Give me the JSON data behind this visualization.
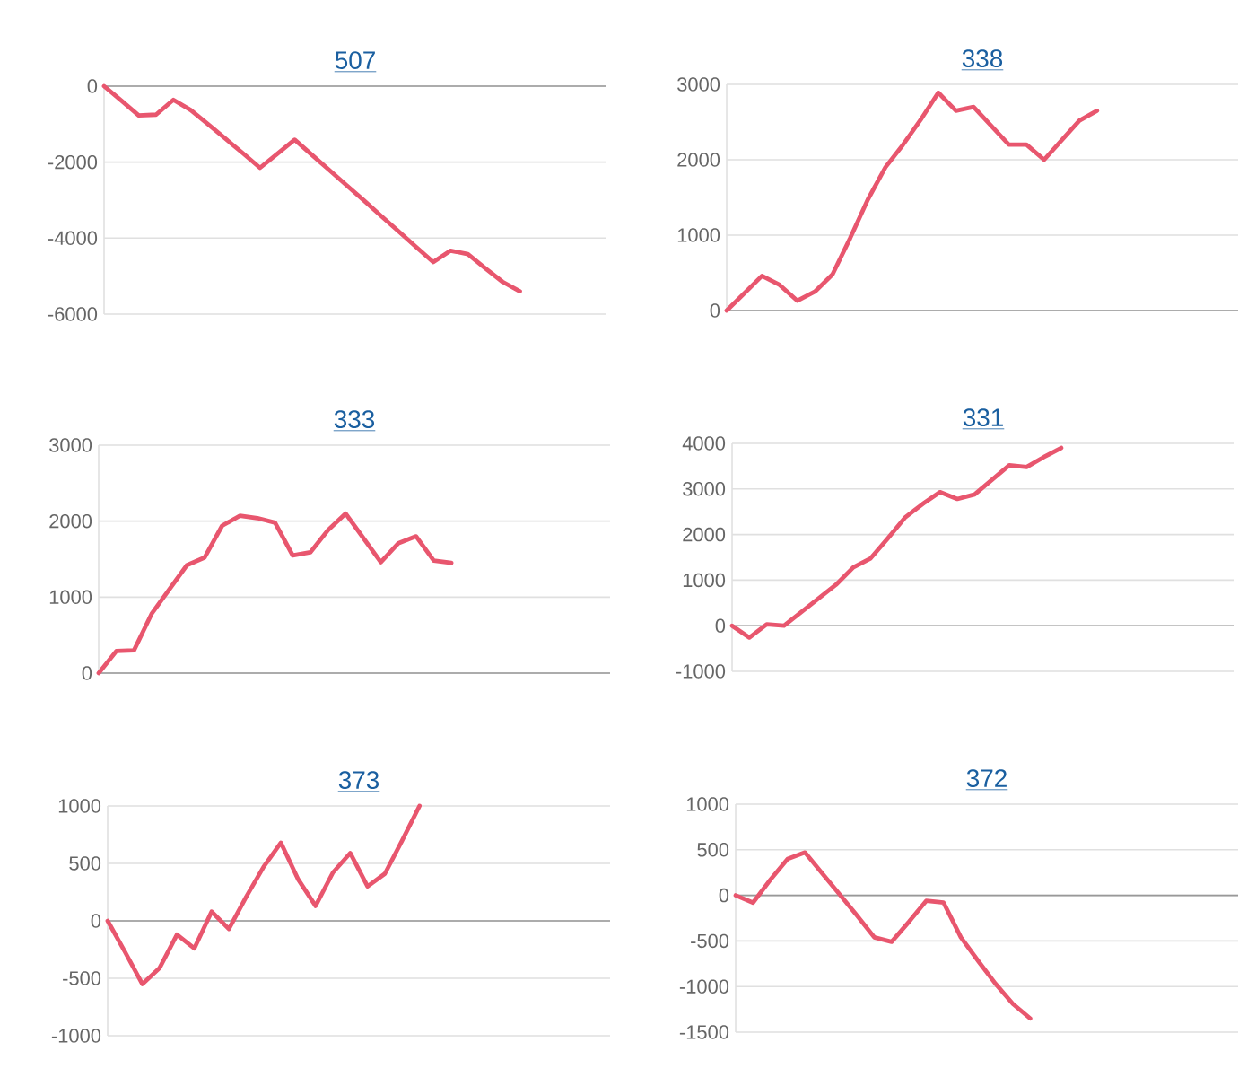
{
  "chart_data": [
    {
      "type": "line",
      "title": "507",
      "categories": [
        null,
        null,
        null,
        null,
        null,
        null,
        null,
        null,
        null,
        null,
        null,
        null,
        null,
        null,
        null,
        null,
        null,
        null,
        null,
        null,
        null,
        null,
        null,
        null,
        null,
        null,
        null,
        null,
        null,
        null
      ],
      "color": "#e8566e",
      "values": [
        0,
        -380,
        -770,
        -750,
        -360,
        -630,
        -1000,
        -1380,
        -1760,
        -2150,
        -1780,
        -1410,
        -1810,
        -2210,
        -2610,
        -3010,
        -3420,
        -3820,
        -4230,
        -4630,
        -4330,
        -4420,
        -4790,
        -5150,
        -5400,
        null,
        null,
        null,
        null,
        null
      ],
      "ylim": [
        -6000,
        0
      ],
      "yticks": [
        -6000,
        -4000,
        -2000,
        0
      ],
      "grid": "y",
      "tick_labels": "y"
    },
    {
      "type": "line",
      "title": "338",
      "categories": [
        null,
        null,
        null,
        null,
        null,
        null,
        null,
        null,
        null,
        null,
        null,
        null,
        null,
        null,
        null,
        null,
        null,
        null,
        null,
        null,
        null,
        null,
        null,
        null,
        null,
        null,
        null,
        null,
        null,
        null
      ],
      "color": "#e8566e",
      "values": [
        0,
        230,
        460,
        340,
        130,
        250,
        480,
        960,
        1470,
        1900,
        2200,
        2530,
        2890,
        2650,
        2700,
        2450,
        2200,
        2200,
        2000,
        2260,
        2520,
        2650,
        null,
        null,
        null,
        null,
        null,
        null,
        null,
        null
      ],
      "ylim": [
        0,
        3000
      ],
      "yticks": [
        0,
        1000,
        2000,
        3000
      ],
      "grid": "y",
      "tick_labels": "y"
    },
    {
      "type": "line",
      "title": "333",
      "categories": [
        null,
        null,
        null,
        null,
        null,
        null,
        null,
        null,
        null,
        null,
        null,
        null,
        null,
        null,
        null,
        null,
        null,
        null,
        null,
        null,
        null,
        null,
        null,
        null,
        null,
        null,
        null,
        null,
        null,
        null
      ],
      "color": "#e8566e",
      "values": [
        0,
        290,
        300,
        780,
        1100,
        1420,
        1520,
        1940,
        2070,
        2040,
        1980,
        1550,
        1590,
        1880,
        2100,
        1780,
        1460,
        1710,
        1800,
        1480,
        1450,
        null,
        null,
        null,
        null,
        null,
        null,
        null,
        null,
        null
      ],
      "ylim": [
        0,
        3000
      ],
      "yticks": [
        0,
        1000,
        2000,
        3000
      ],
      "grid": "y",
      "tick_labels": "y"
    },
    {
      "type": "line",
      "title": "331",
      "categories": [
        null,
        null,
        null,
        null,
        null,
        null,
        null,
        null,
        null,
        null,
        null,
        null,
        null,
        null,
        null,
        null,
        null,
        null,
        null,
        null,
        null,
        null,
        null,
        null,
        null,
        null,
        null,
        null,
        null,
        null
      ],
      "color": "#e8566e",
      "values": [
        0,
        -260,
        30,
        0,
        300,
        600,
        900,
        1280,
        1480,
        1920,
        2380,
        2670,
        2930,
        2780,
        2880,
        3200,
        3520,
        3480,
        3700,
        3900,
        null,
        null,
        null,
        null,
        null,
        null,
        null,
        null,
        null,
        null
      ],
      "ylim": [
        -1000,
        4000
      ],
      "yticks": [
        -1000,
        0,
        1000,
        2000,
        3000,
        4000
      ],
      "grid": "y",
      "tick_labels": "y"
    },
    {
      "type": "line",
      "title": "373",
      "categories": [
        null,
        null,
        null,
        null,
        null,
        null,
        null,
        null,
        null,
        null,
        null,
        null,
        null,
        null,
        null,
        null,
        null,
        null,
        null,
        null,
        null,
        null,
        null,
        null,
        null,
        null,
        null,
        null,
        null,
        null
      ],
      "color": "#e8566e",
      "values": [
        0,
        -270,
        -550,
        -410,
        -120,
        -240,
        80,
        -70,
        210,
        470,
        680,
        360,
        130,
        420,
        590,
        300,
        410,
        700,
        1000,
        null,
        null,
        null,
        null,
        null,
        null,
        null,
        null,
        null,
        null,
        null
      ],
      "ylim": [
        -1000,
        1000
      ],
      "yticks": [
        -1000,
        -500,
        0,
        500,
        1000
      ],
      "grid": "y",
      "tick_labels": "y"
    },
    {
      "type": "line",
      "title": "372",
      "categories": [
        null,
        null,
        null,
        null,
        null,
        null,
        null,
        null,
        null,
        null,
        null,
        null,
        null,
        null,
        null,
        null,
        null,
        null,
        null,
        null,
        null,
        null,
        null,
        null,
        null,
        null,
        null,
        null,
        null,
        null
      ],
      "color": "#e8566e",
      "values": [
        0,
        -80,
        170,
        400,
        470,
        240,
        10,
        -220,
        -460,
        -510,
        -290,
        -60,
        -80,
        -460,
        -720,
        -970,
        -1190,
        -1350,
        null,
        null,
        null,
        null,
        null,
        null,
        null,
        null,
        null,
        null,
        null,
        null
      ],
      "ylim": [
        -1500,
        1000
      ],
      "yticks": [
        -1500,
        -1000,
        -500,
        0,
        500,
        1000
      ],
      "grid": "y",
      "tick_labels": "y"
    }
  ]
}
